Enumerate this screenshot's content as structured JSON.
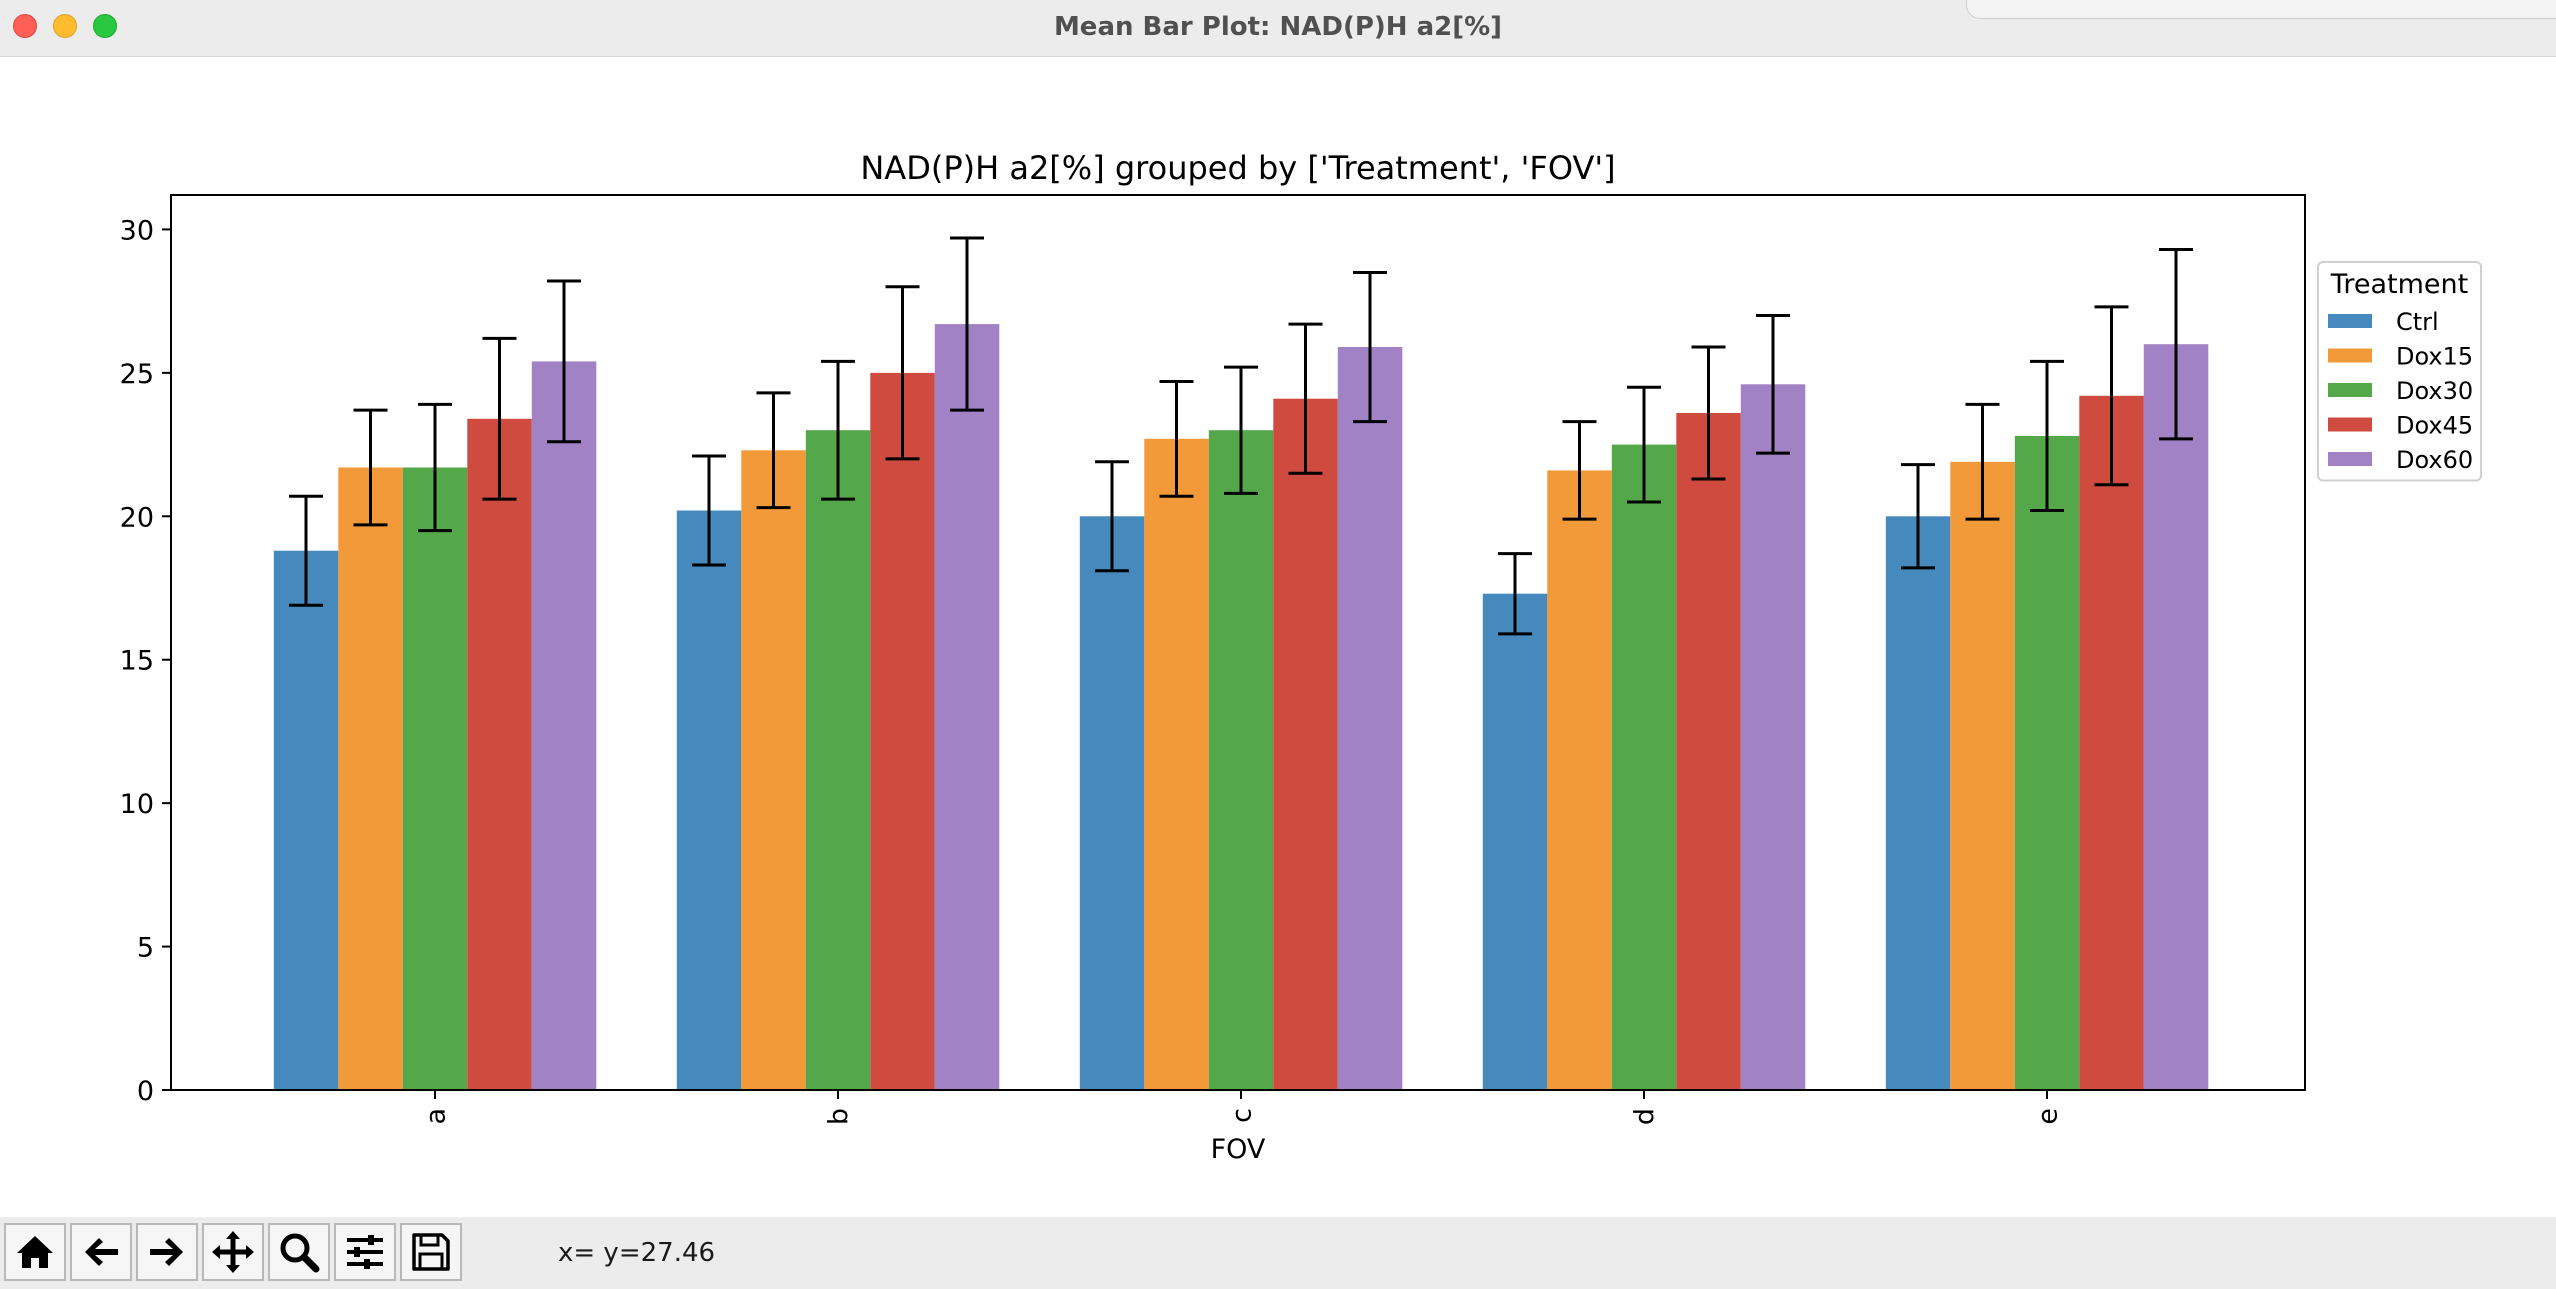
{
  "window": {
    "title": "Mean Bar Plot: NAD(P)H a2[%]"
  },
  "toolbar": {
    "buttons": [
      {
        "name": "home-button",
        "icon": "home-icon"
      },
      {
        "name": "back-button",
        "icon": "arrow-left-icon"
      },
      {
        "name": "forward-button",
        "icon": "arrow-right-icon"
      },
      {
        "name": "pan-button",
        "icon": "move-arrows-icon"
      },
      {
        "name": "zoom-button",
        "icon": "magnifier-icon"
      },
      {
        "name": "configure-subplots-button",
        "icon": "sliders-icon"
      },
      {
        "name": "save-button",
        "icon": "floppy-disk-icon"
      }
    ],
    "coordinates": "x= y=27.46"
  },
  "chart_data": {
    "type": "bar",
    "title": "NAD(P)H a2[%] grouped by ['Treatment', 'FOV']",
    "xlabel": "FOV",
    "ylabel": "",
    "categories": [
      "a",
      "b",
      "c",
      "d",
      "e"
    ],
    "ylim": [
      0,
      31.2
    ],
    "yticks": [
      0,
      5,
      10,
      15,
      20,
      25,
      30
    ],
    "grid": false,
    "legend": {
      "title": "Treatment",
      "placement": "outside-right-top"
    },
    "series": [
      {
        "name": "Ctrl",
        "color": "#4589bd",
        "values": [
          18.8,
          20.2,
          20.0,
          17.3,
          20.0
        ],
        "errors": [
          1.9,
          1.9,
          1.9,
          1.4,
          1.8
        ]
      },
      {
        "name": "Dox15",
        "color": "#f29a3a",
        "values": [
          21.7,
          22.3,
          22.7,
          21.6,
          21.9
        ],
        "errors": [
          2.0,
          2.0,
          2.0,
          1.7,
          2.0
        ]
      },
      {
        "name": "Dox30",
        "color": "#55a84a",
        "values": [
          21.7,
          23.0,
          23.0,
          22.5,
          22.8
        ],
        "errors": [
          2.2,
          2.4,
          2.2,
          2.0,
          2.6
        ]
      },
      {
        "name": "Dox45",
        "color": "#cf4b40",
        "values": [
          23.4,
          25.0,
          24.1,
          23.6,
          24.2
        ],
        "errors": [
          2.8,
          3.0,
          2.6,
          2.3,
          3.1
        ]
      },
      {
        "name": "Dox60",
        "color": "#a182c5",
        "values": [
          25.4,
          26.7,
          25.9,
          24.6,
          26.0
        ],
        "errors": [
          2.8,
          3.0,
          2.6,
          2.4,
          3.3
        ]
      }
    ]
  }
}
